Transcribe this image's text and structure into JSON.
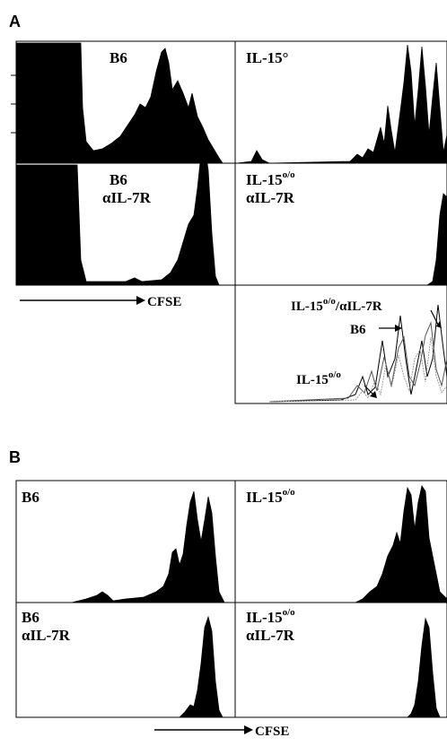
{
  "figure": {
    "panel_a_letter": "A",
    "panel_b_letter": "B",
    "x_axis_label": "CFSE",
    "a_top_left": "B6",
    "a_top_right": "IL-15°",
    "a_mid_left_1": "B6",
    "a_mid_left_2": "αIL-7R",
    "a_mid_right_1": "IL-15",
    "a_mid_right_sup": "o/o",
    "a_mid_right_2": "αIL-7R",
    "overlay_label_1": "IL-15",
    "overlay_label_1_sup": "o/o",
    "overlay_label_1_tail": "/αIL-7R",
    "overlay_label_2": "B6",
    "overlay_label_3": "IL-15",
    "overlay_label_3_sup": "o/o",
    "b_top_left": "B6",
    "b_top_right": "IL-15",
    "b_top_right_sup": "o/o",
    "b_bot_left_1": "B6",
    "b_bot_left_2": "αIL-7R",
    "b_bot_right_1": "IL-15",
    "b_bot_right_sup": "o/o",
    "b_bot_right_2": "αIL-7R"
  }
}
